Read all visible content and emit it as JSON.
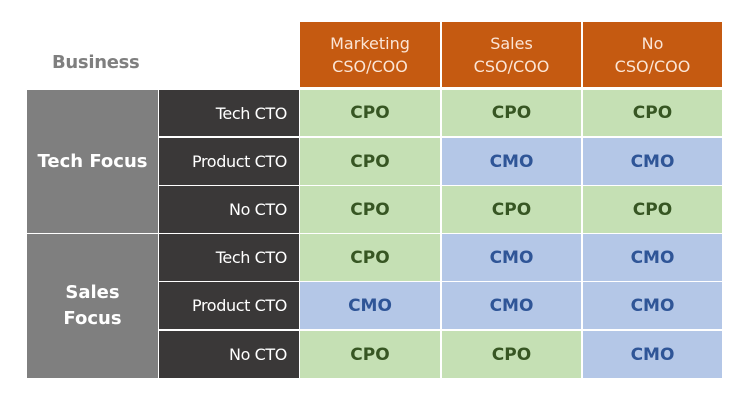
{
  "corner_label": "Business",
  "columns": [
    {
      "line1": "Marketing",
      "line2": "CSO/COO"
    },
    {
      "line1": "Sales",
      "line2": "CSO/COO"
    },
    {
      "line1": "No",
      "line2": "CSO/COO"
    }
  ],
  "groups": [
    {
      "label": "Tech Focus",
      "rows": [
        {
          "label": "Tech CTO",
          "cells": [
            "CPO",
            "CPO",
            "CPO"
          ]
        },
        {
          "label": "Product CTO",
          "cells": [
            "CPO",
            "CMO",
            "CMO"
          ]
        },
        {
          "label": "No CTO",
          "cells": [
            "CPO",
            "CPO",
            "CPO"
          ]
        }
      ]
    },
    {
      "label": "Sales Focus",
      "rows": [
        {
          "label": "Tech CTO",
          "cells": [
            "CPO",
            "CMO",
            "CMO"
          ]
        },
        {
          "label": "Product CTO",
          "cells": [
            "CMO",
            "CMO",
            "CMO"
          ]
        },
        {
          "label": "No CTO",
          "cells": [
            "CPO",
            "CPO",
            "CMO"
          ]
        }
      ]
    }
  ],
  "colors": {
    "header_bg": "#c55a11",
    "group_bg": "#7f7f7f",
    "subrow_bg": "#3a3838",
    "cpo_bg": "#c5e0b4",
    "cpo_text": "#375623",
    "cmo_bg": "#b4c7e7",
    "cmo_text": "#2f5597"
  }
}
